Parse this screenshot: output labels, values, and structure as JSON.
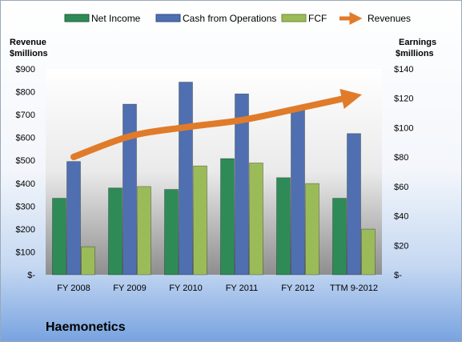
{
  "chart_data": {
    "type": "bar",
    "company": "Haemonetics",
    "categories": [
      "FY 2008",
      "FY 2009",
      "FY 2010",
      "FY 2011",
      "FY 2012",
      "TTM 9-2012"
    ],
    "left_axis": {
      "title_line1": "Revenue",
      "title_line2": "$millions",
      "ylim": [
        0,
        900
      ],
      "ticks": [
        0,
        100,
        200,
        300,
        400,
        500,
        600,
        700,
        800,
        900
      ],
      "tick_labels": [
        "$-",
        "$100",
        "$200",
        "$300",
        "$400",
        "$500",
        "$600",
        "$700",
        "$800",
        "$900"
      ]
    },
    "right_axis": {
      "title_line1": "Earnings",
      "title_line2": "$millions",
      "ylim": [
        0,
        140
      ],
      "ticks": [
        0,
        20,
        40,
        60,
        80,
        100,
        120,
        140
      ],
      "tick_labels": [
        "$-",
        "$20",
        "$40",
        "$60",
        "$80",
        "$100",
        "$120",
        "$140"
      ]
    },
    "series": [
      {
        "name": "Net Income",
        "kind": "bar",
        "axis": "right",
        "color": "#2e8b57",
        "values": [
          52,
          59,
          58,
          79,
          66,
          52
        ]
      },
      {
        "name": "Cash from Operations",
        "kind": "bar",
        "axis": "right",
        "color": "#4f6fb0",
        "values": [
          77,
          116,
          131,
          123,
          114,
          96
        ]
      },
      {
        "name": "FCF",
        "kind": "bar",
        "axis": "right",
        "color": "#9bbb59",
        "values": [
          19,
          60,
          74,
          76,
          62,
          31
        ]
      },
      {
        "name": "Revenues",
        "kind": "arrow-line",
        "axis": "left",
        "color": "#e07b2a",
        "values": [
          515,
          605,
          645,
          676,
          727,
          780
        ]
      }
    ],
    "legend_position": "top",
    "grid": false
  }
}
